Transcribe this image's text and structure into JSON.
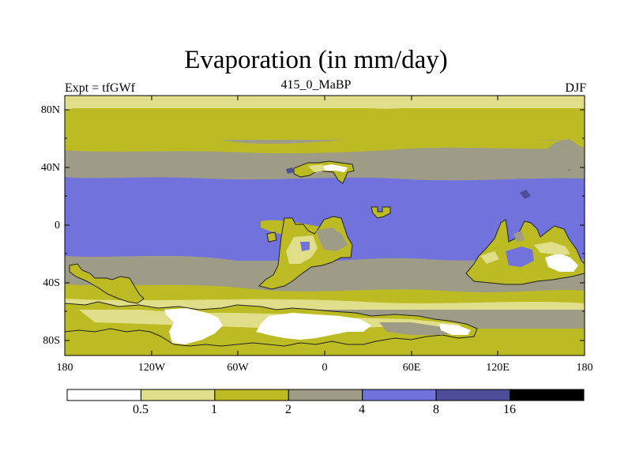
{
  "title": "Evaporation (in mm/day)",
  "subtitle_left": "Expt = tfGWf",
  "subtitle_center": "415_0_MaBP",
  "subtitle_right": "DJF",
  "y_axis": [
    "80N",
    "40N",
    "0",
    "40S",
    "80S"
  ],
  "x_axis": [
    "180",
    "120W",
    "60W",
    "0",
    "60E",
    "120E",
    "180"
  ],
  "colorbar": {
    "colors": [
      "#ffffff",
      "#e0de88",
      "#bdbb24",
      "#9e9b86",
      "#7272dc",
      "#4e4e98",
      "#000000"
    ],
    "labels": [
      "0.5",
      "1",
      "2",
      "4",
      "8",
      "16"
    ]
  },
  "chart_data": {
    "type": "heatmap",
    "variable": "Evaporation",
    "units": "mm/day",
    "levels": [
      0.5,
      1,
      2,
      4,
      8,
      16
    ],
    "season": "DJF",
    "lon_range": [
      -180,
      180
    ],
    "lat_range": [
      -90,
      90
    ]
  }
}
